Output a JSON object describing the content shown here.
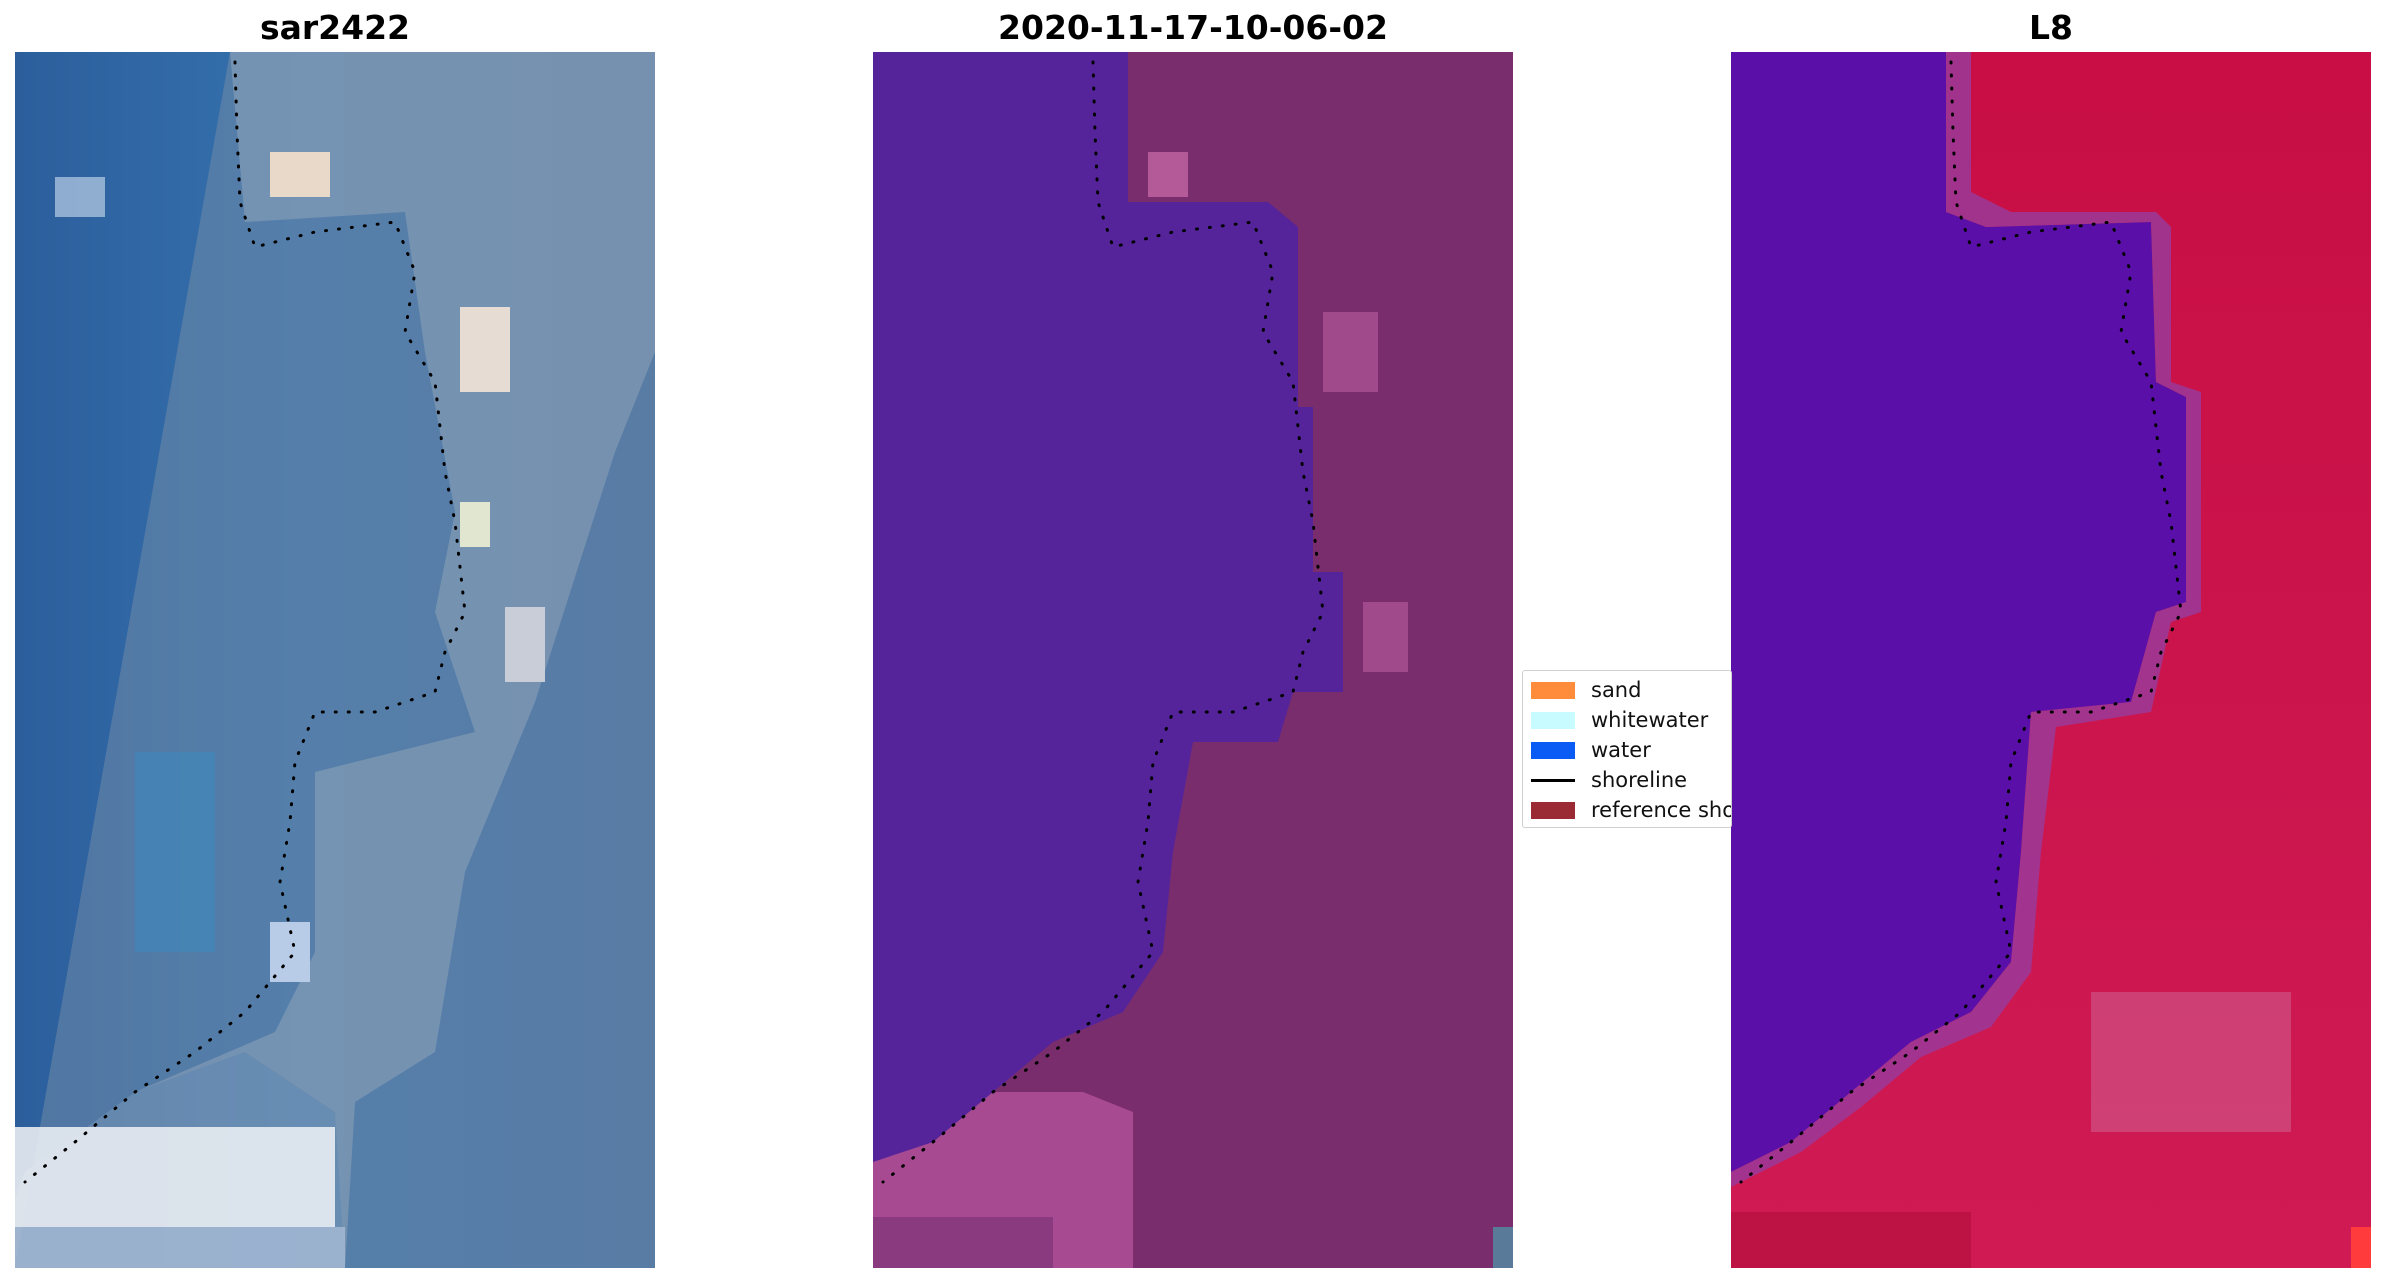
{
  "panels": [
    {
      "title": "sar2422",
      "kind": "rgb-image",
      "image": "satellite-rgb"
    },
    {
      "title": "2020-11-17-10-06-02",
      "kind": "classification-overlay",
      "image": "classified-shoreline"
    },
    {
      "title": "L8",
      "kind": "index-image",
      "image": "water-index"
    }
  ],
  "legend": {
    "items": [
      {
        "label": "sand",
        "color": "#ff8c3a",
        "style": "patch"
      },
      {
        "label": "whitewater",
        "color": "#c8fbff",
        "style": "patch"
      },
      {
        "label": "water",
        "color": "#0a5cf5",
        "style": "patch"
      },
      {
        "label": "shoreline",
        "color": "#000000",
        "style": "line"
      },
      {
        "label": "reference shoreline",
        "color": "#9a2a34",
        "style": "patch"
      }
    ]
  },
  "colors": {
    "rgb_water": "#3a6aa2",
    "rgb_land": "#8ea2b8",
    "class_water": "#55249a",
    "class_land": "#7c2f6e",
    "index_water": "#5a10a8",
    "index_land": "#c8104a",
    "shoreline_dots": "#000000"
  }
}
